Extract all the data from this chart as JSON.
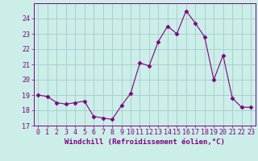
{
  "x": [
    0,
    1,
    2,
    3,
    4,
    5,
    6,
    7,
    8,
    9,
    10,
    11,
    12,
    13,
    14,
    15,
    16,
    17,
    18,
    19,
    20,
    21,
    22,
    23
  ],
  "y": [
    19.0,
    18.9,
    18.5,
    18.4,
    18.5,
    18.6,
    17.6,
    17.5,
    17.4,
    18.3,
    19.1,
    21.1,
    20.9,
    22.5,
    23.5,
    23.0,
    24.5,
    23.7,
    22.8,
    20.0,
    21.6,
    18.8,
    18.2,
    18.2
  ],
  "line_color": "#800080",
  "marker": "D",
  "marker_size": 2.5,
  "bg_color": "#cceee8",
  "grid_color": "#a0cccc",
  "xlabel": "Windchill (Refroidissement éolien,°C)",
  "ylim": [
    17,
    25
  ],
  "xlim": [
    -0.5,
    23.5
  ],
  "yticks": [
    17,
    18,
    19,
    20,
    21,
    22,
    23,
    24
  ],
  "xticks": [
    0,
    1,
    2,
    3,
    4,
    5,
    6,
    7,
    8,
    9,
    10,
    11,
    12,
    13,
    14,
    15,
    16,
    17,
    18,
    19,
    20,
    21,
    22,
    23
  ],
  "tick_color": "#800080",
  "label_color": "#800080",
  "font_size": 6,
  "xlabel_fontsize": 6.5
}
